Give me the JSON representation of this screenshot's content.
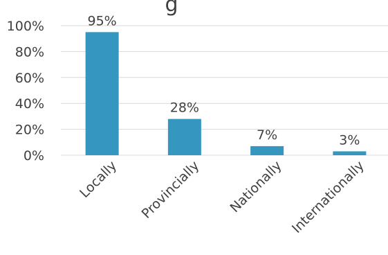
{
  "chart_data": {
    "type": "bar",
    "title_fragment": "g",
    "categories": [
      "Locally",
      "Provincially",
      "Nationally",
      "Internationally"
    ],
    "values": [
      95,
      28,
      7,
      3
    ],
    "data_labels": [
      "95%",
      "28%",
      "7%",
      "3%"
    ],
    "y_ticks": [
      "0%",
      "20%",
      "40%",
      "60%",
      "80%",
      "100%"
    ],
    "ylim": [
      0,
      100
    ],
    "grid": true,
    "bar_color": "#3597BF",
    "grid_color": "#D9D9D9"
  }
}
